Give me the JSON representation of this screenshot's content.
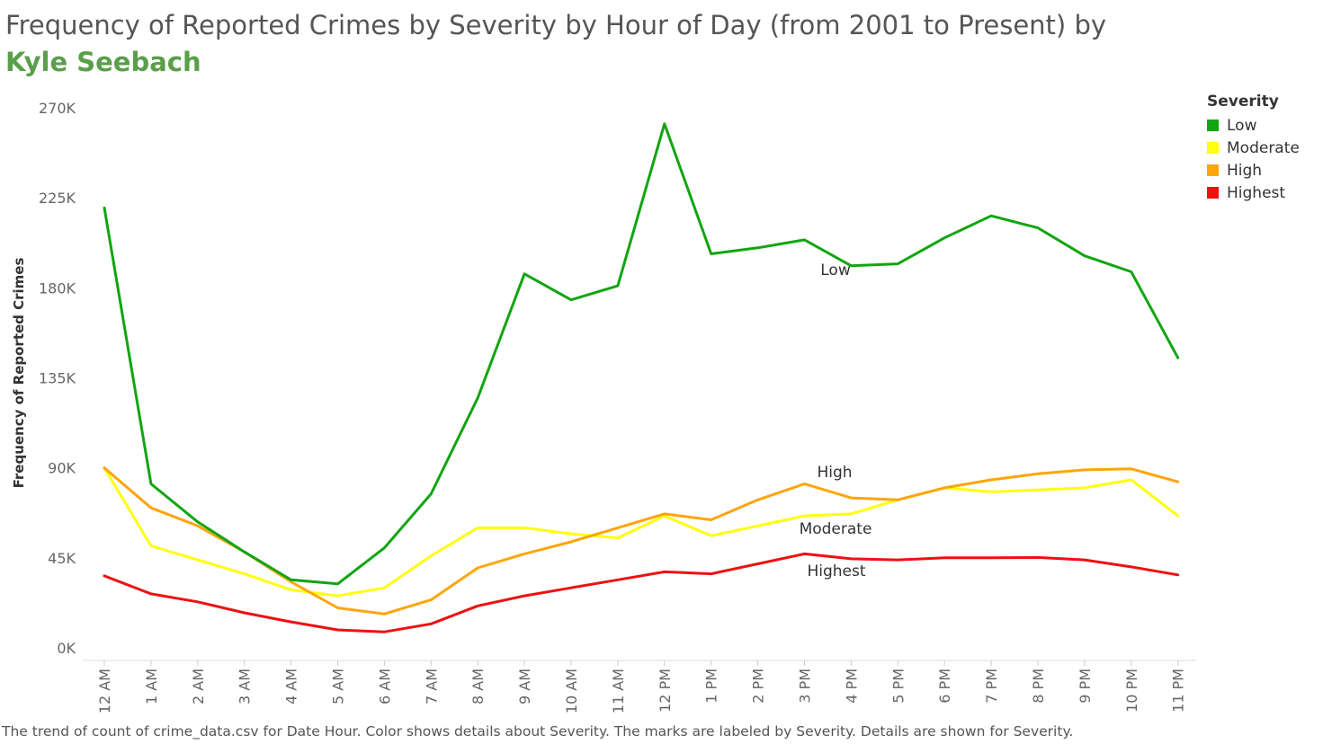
{
  "title": {
    "text": "Frequency of Reported Crimes by Severity by Hour of Day (from 2001 to Present) by ",
    "author": "Kyle Seebach"
  },
  "caption": "The trend of count of crime_data.csv for Date Hour.  Color shows details about Severity.  The marks are labeled by Severity.  Details are shown for Severity.",
  "legend": {
    "title": "Severity",
    "items": [
      {
        "label": "Low",
        "color": "#11a511"
      },
      {
        "label": "Moderate",
        "color": "#ffff0e"
      },
      {
        "label": "High",
        "color": "#ffa50a"
      },
      {
        "label": "Highest",
        "color": "#ee1111"
      }
    ]
  },
  "chart_data": {
    "type": "line",
    "xlabel": "",
    "ylabel": "Frequency of Reported Crimes",
    "ylim": [
      0,
      270000
    ],
    "yticks": [
      {
        "value": 0,
        "label": "0K"
      },
      {
        "value": 45000,
        "label": "45K"
      },
      {
        "value": 90000,
        "label": "90K"
      },
      {
        "value": 135000,
        "label": "135K"
      },
      {
        "value": 180000,
        "label": "180K"
      },
      {
        "value": 225000,
        "label": "225K"
      },
      {
        "value": 270000,
        "label": "270K"
      }
    ],
    "categories": [
      "12 AM",
      "1 AM",
      "2 AM",
      "3 AM",
      "4 AM",
      "5 AM",
      "6 AM",
      "7 AM",
      "8 AM",
      "9 AM",
      "10 AM",
      "11 AM",
      "12 PM",
      "1 PM",
      "2 PM",
      "3 PM",
      "4 PM",
      "5 PM",
      "6 PM",
      "7 PM",
      "8 PM",
      "9 PM",
      "10 PM",
      "11 PM"
    ],
    "grid": false,
    "legend_position": "top-right",
    "series": [
      {
        "name": "Low",
        "color": "#11a511",
        "values": [
          220000,
          82000,
          63000,
          48000,
          34000,
          32000,
          50000,
          77000,
          125000,
          187000,
          174000,
          181000,
          262000,
          197000,
          200000,
          204000,
          191000,
          192000,
          205000,
          216000,
          210000,
          196000,
          188000,
          145000
        ],
        "label_index": 15,
        "label": "Low"
      },
      {
        "name": "Moderate",
        "color": "#ffff0e",
        "values": [
          90000,
          51000,
          44000,
          37000,
          29000,
          26000,
          30000,
          46000,
          60000,
          60000,
          57000,
          55000,
          66000,
          56000,
          61000,
          66000,
          67000,
          74000,
          80000,
          78000,
          79000,
          80000,
          84000,
          66000
        ],
        "label_index": 15,
        "label": "Moderate"
      },
      {
        "name": "High",
        "color": "#ffa50a",
        "values": [
          90000,
          70000,
          61000,
          48000,
          33000,
          20000,
          17000,
          24000,
          40000,
          47000,
          53000,
          60000,
          67000,
          64000,
          74000,
          82000,
          75000,
          74000,
          80000,
          84000,
          87000,
          89000,
          89500,
          83000
        ],
        "label_index": 15,
        "label": "High"
      },
      {
        "name": "Highest",
        "color": "#ee1111",
        "values": [
          36000,
          27000,
          23000,
          17500,
          13000,
          9000,
          8000,
          12000,
          21000,
          26000,
          30000,
          34000,
          38000,
          37000,
          42000,
          47000,
          44500,
          44000,
          45000,
          45000,
          45200,
          44000,
          40500,
          36500
        ],
        "label_index": 15,
        "label": "Highest"
      }
    ]
  }
}
